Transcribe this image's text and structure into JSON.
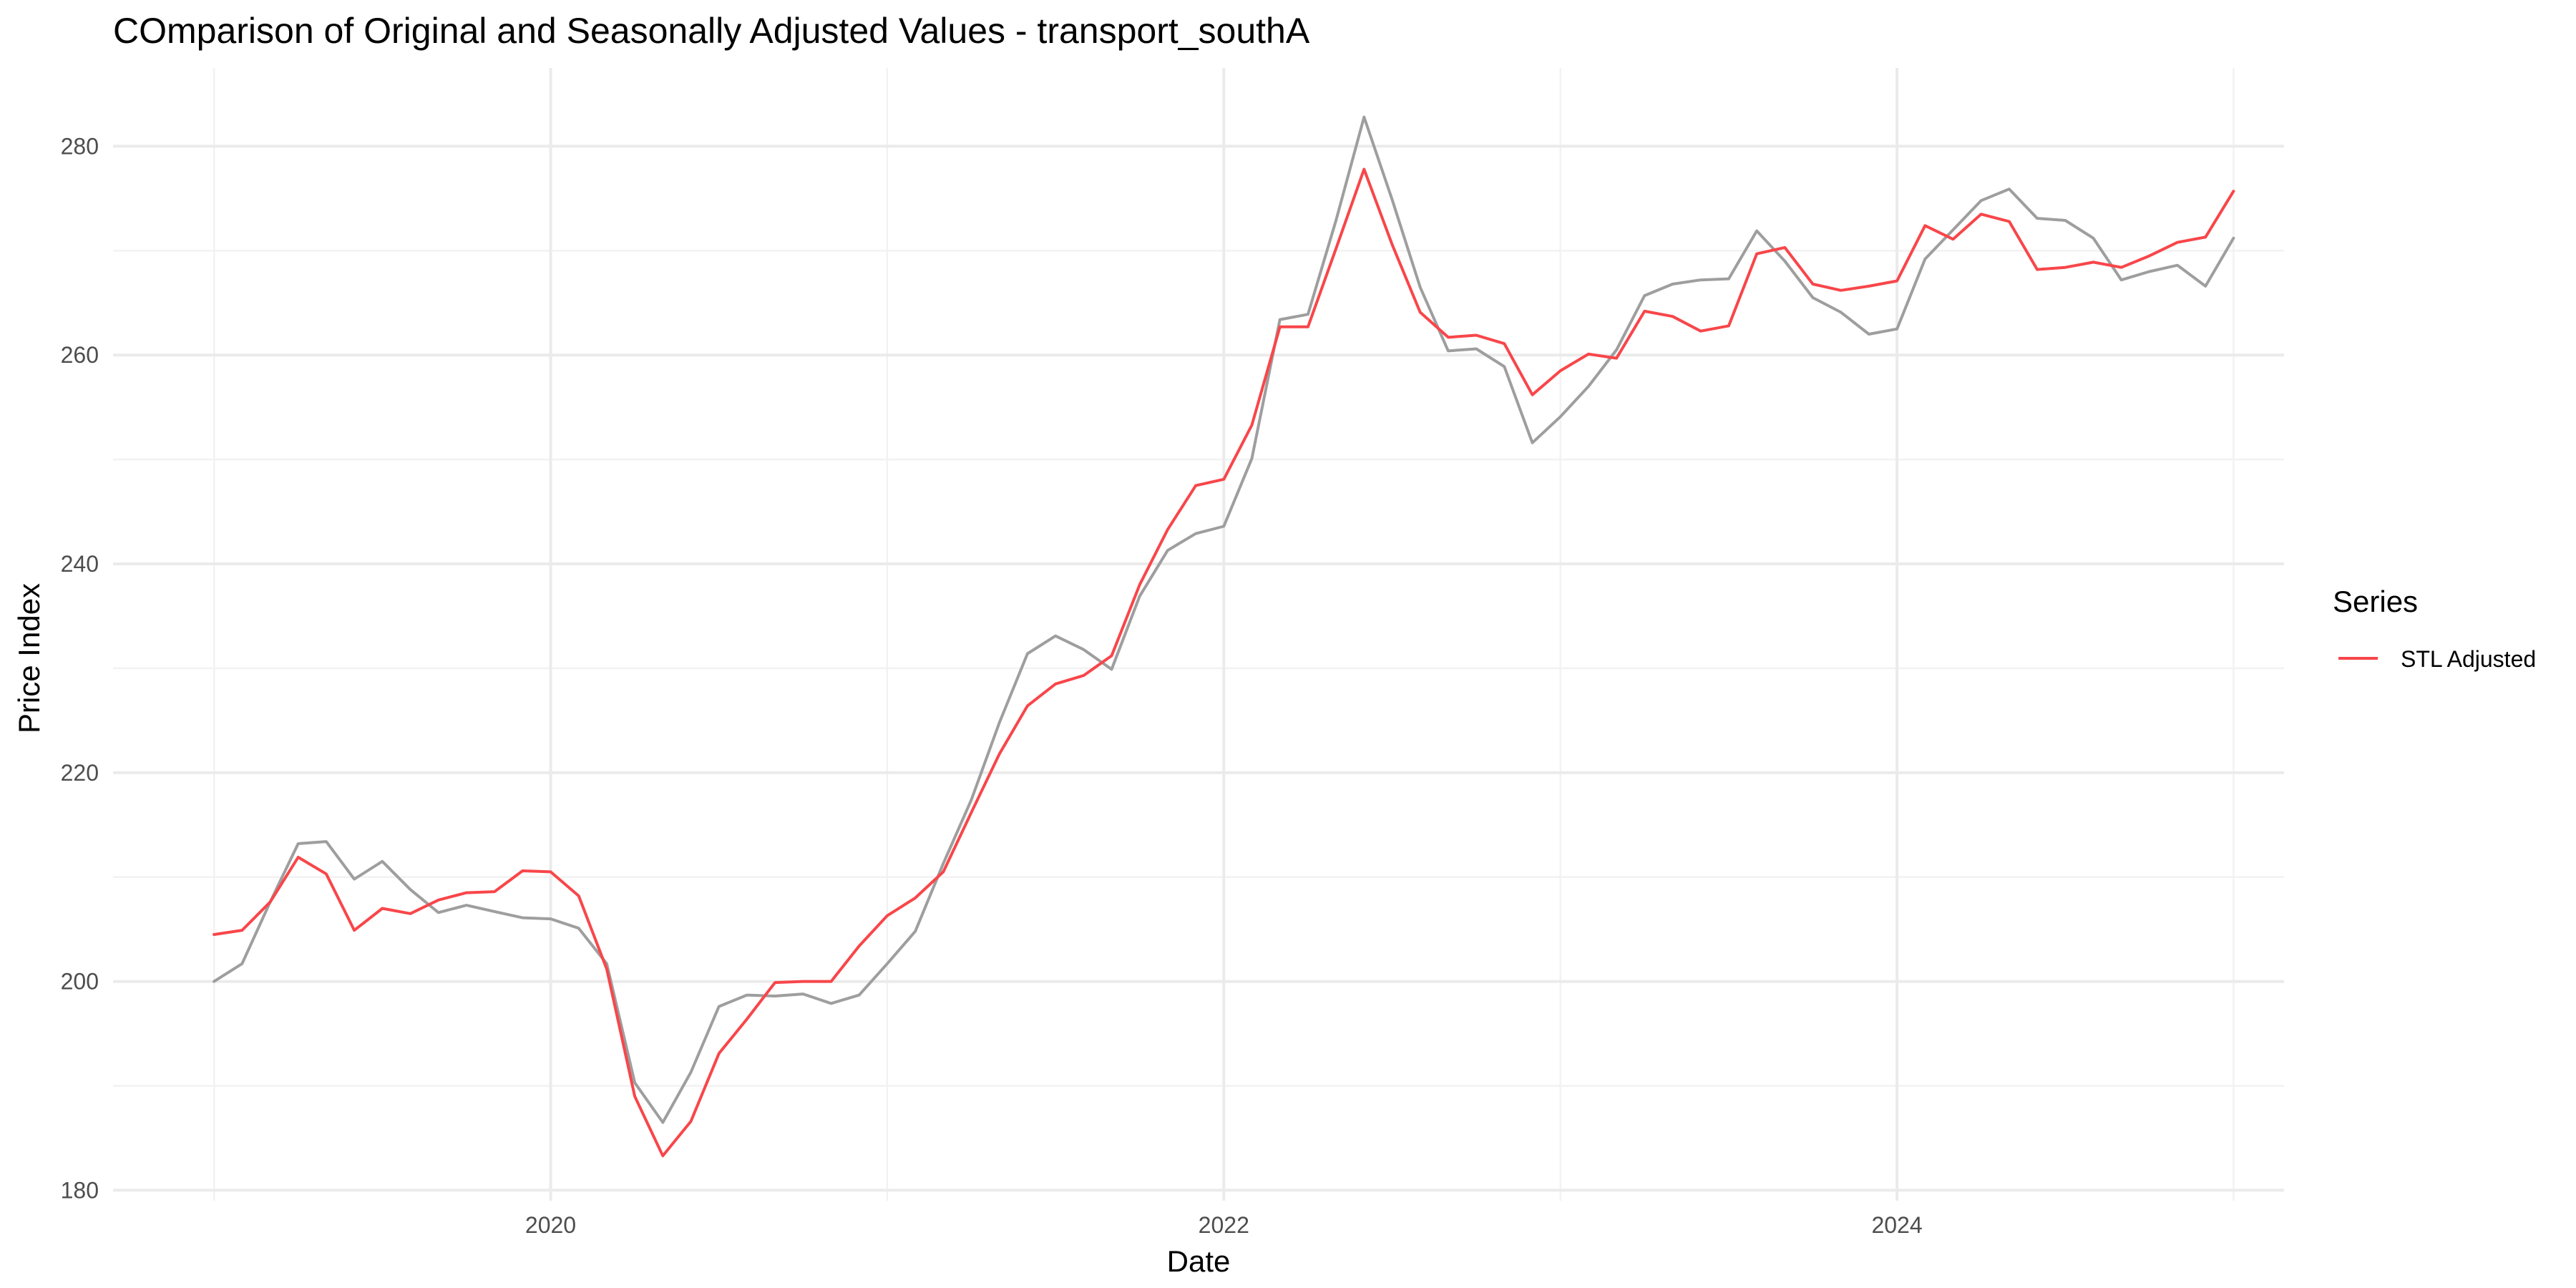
{
  "chart_data": {
    "type": "line",
    "title": "COmparison of Original and Seasonally Adjusted Values - transport_southA",
    "xlabel": "Date",
    "ylabel": "Price Index",
    "xlim": [
      2018.7,
      2025.15
    ],
    "ylim": [
      179,
      287.5
    ],
    "x_ticks": [
      2020,
      2022,
      2024
    ],
    "x_tick_labels": [
      "2020",
      "2022",
      "2024"
    ],
    "y_ticks": [
      180,
      200,
      220,
      240,
      260,
      280
    ],
    "y_tick_labels": [
      "180",
      "200",
      "220",
      "240",
      "260",
      "280"
    ],
    "grid": true,
    "legend": {
      "title": "Series",
      "position": "right",
      "entries": [
        {
          "label": "STL Adjusted",
          "color": "#f8464a"
        }
      ]
    },
    "x_start": 2019.0,
    "x_step_months": 1,
    "series": [
      {
        "role": "original",
        "color": "#9e9e9e",
        "values": [
          200.0,
          201.7,
          207.6,
          213.2,
          213.4,
          209.8,
          211.5,
          208.8,
          206.6,
          207.3,
          206.7,
          206.1,
          206.0,
          205.1,
          201.7,
          190.3,
          186.5,
          191.3,
          197.6,
          198.7,
          198.6,
          198.8,
          197.9,
          198.7,
          201.7,
          204.8,
          211.3,
          217.4,
          224.8,
          231.4,
          233.1,
          231.8,
          229.9,
          236.9,
          241.3,
          242.9,
          243.6,
          250.1,
          263.4,
          263.9,
          272.9,
          282.8,
          274.9,
          266.5,
          260.4,
          260.6,
          258.9,
          251.6,
          254.1,
          257.0,
          260.5,
          265.7,
          266.8,
          267.2,
          267.3,
          271.9,
          269.0,
          265.5,
          264.1,
          262.0,
          262.5,
          269.2,
          272.0,
          274.8,
          275.9,
          273.1,
          272.9,
          271.2,
          267.2,
          268.0,
          268.6,
          266.6,
          271.2
        ]
      },
      {
        "name": "STL Adjusted",
        "role": "adjusted",
        "color": "#f8464a",
        "values": [
          204.5,
          204.9,
          207.6,
          211.9,
          210.3,
          204.9,
          207.0,
          206.5,
          207.8,
          208.5,
          208.6,
          210.6,
          210.5,
          208.2,
          201.2,
          189.0,
          183.3,
          186.6,
          193.1,
          196.4,
          199.9,
          200.0,
          200.0,
          203.4,
          206.3,
          208.0,
          210.5,
          216.2,
          221.8,
          226.4,
          228.5,
          229.3,
          231.2,
          238.0,
          243.3,
          247.5,
          248.1,
          253.3,
          262.7,
          262.7,
          270.2,
          277.8,
          270.6,
          264.1,
          261.7,
          261.9,
          261.1,
          256.2,
          258.5,
          260.1,
          259.7,
          264.2,
          263.7,
          262.3,
          262.8,
          269.7,
          270.3,
          266.8,
          266.2,
          266.6,
          267.1,
          272.4,
          271.1,
          273.5,
          272.8,
          268.2,
          268.4,
          268.9,
          268.4,
          269.5,
          270.8,
          271.3,
          275.7
        ]
      }
    ]
  }
}
